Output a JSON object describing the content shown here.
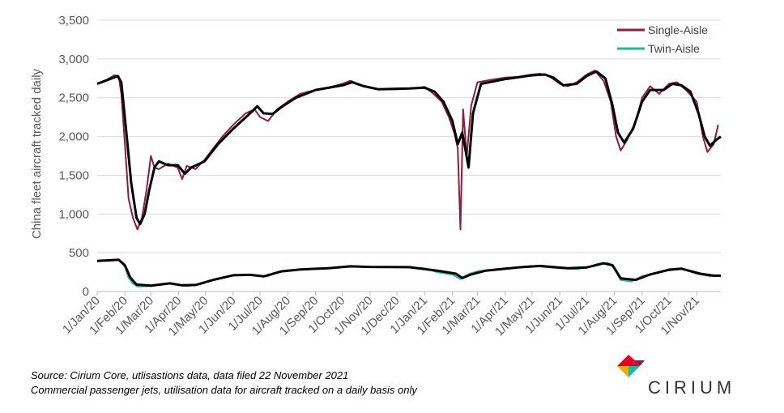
{
  "chart_data": {
    "type": "line",
    "title": "",
    "xlabel": "",
    "ylabel": "China fleet aircraft tracked daily",
    "ylim": [
      0,
      3500
    ],
    "yticks": [
      0,
      500,
      1000,
      1500,
      2000,
      2500,
      3000,
      3500
    ],
    "ytick_labels": [
      "0",
      "500",
      "1,000",
      "1,500",
      "2,000",
      "2,500",
      "3,000",
      "3,500"
    ],
    "xlim": [
      "2020-01-01",
      "2021-11-28"
    ],
    "xtick_dates": [
      "2020-01-01",
      "2020-02-01",
      "2020-03-01",
      "2020-04-01",
      "2020-05-01",
      "2020-06-01",
      "2020-07-01",
      "2020-08-01",
      "2020-09-01",
      "2020-10-01",
      "2020-11-01",
      "2020-12-01",
      "2021-01-01",
      "2021-02-01",
      "2021-03-01",
      "2021-04-01",
      "2021-05-01",
      "2021-06-01",
      "2021-07-01",
      "2021-08-01",
      "2021-09-01",
      "2021-10-01",
      "2021-11-01"
    ],
    "xtick_labels": [
      "1/Jan/20",
      "1/Feb/20",
      "1/Mar/20",
      "1/Apr/20",
      "1/May/20",
      "1/Jun/20",
      "1/Jul/20",
      "1/Aug/20",
      "1/Sep/20",
      "1/Oct/20",
      "1/Nov/20",
      "1/Dec/20",
      "1/Jan/21",
      "1/Feb/21",
      "1/Mar/21",
      "1/Apr/21",
      "1/May/21",
      "1/Jun/21",
      "1/Jul/21",
      "1/Aug/21",
      "1/Sep/21",
      "1/Oct/21",
      "1/Nov/21"
    ],
    "grid": "horizontal",
    "legend_position": "top-right",
    "series": [
      {
        "name": "Single-Aisle",
        "color": "#8b1e3f",
        "values": [
          [
            "2020-01-01",
            2680
          ],
          [
            "2020-01-10",
            2720
          ],
          [
            "2020-01-20",
            2790
          ],
          [
            "2020-01-25",
            2780
          ],
          [
            "2020-01-28",
            2550
          ],
          [
            "2020-02-01",
            1900
          ],
          [
            "2020-02-05",
            1200
          ],
          [
            "2020-02-10",
            950
          ],
          [
            "2020-02-15",
            800
          ],
          [
            "2020-02-20",
            950
          ],
          [
            "2020-02-25",
            1300
          ],
          [
            "2020-03-01",
            1750
          ],
          [
            "2020-03-05",
            1600
          ],
          [
            "2020-03-10",
            1580
          ],
          [
            "2020-03-20",
            1650
          ],
          [
            "2020-03-31",
            1600
          ],
          [
            "2020-04-05",
            1450
          ],
          [
            "2020-04-10",
            1620
          ],
          [
            "2020-04-20",
            1580
          ],
          [
            "2020-04-30",
            1700
          ],
          [
            "2020-05-10",
            1850
          ],
          [
            "2020-05-20",
            2000
          ],
          [
            "2020-06-01",
            2150
          ],
          [
            "2020-06-15",
            2300
          ],
          [
            "2020-06-25",
            2350
          ],
          [
            "2020-07-01",
            2250
          ],
          [
            "2020-07-10",
            2200
          ],
          [
            "2020-07-20",
            2350
          ],
          [
            "2020-08-01",
            2450
          ],
          [
            "2020-08-15",
            2550
          ],
          [
            "2020-09-01",
            2600
          ],
          [
            "2020-09-15",
            2630
          ],
          [
            "2020-10-01",
            2680
          ],
          [
            "2020-10-10",
            2720
          ],
          [
            "2020-10-25",
            2650
          ],
          [
            "2020-11-10",
            2610
          ],
          [
            "2020-12-01",
            2610
          ],
          [
            "2020-12-20",
            2620
          ],
          [
            "2021-01-01",
            2640
          ],
          [
            "2021-01-10",
            2560
          ],
          [
            "2021-01-20",
            2450
          ],
          [
            "2021-01-28",
            2250
          ],
          [
            "2021-02-03",
            2050
          ],
          [
            "2021-02-07",
            1850
          ],
          [
            "2021-02-10",
            800
          ],
          [
            "2021-02-13",
            2350
          ],
          [
            "2021-02-17",
            1750
          ],
          [
            "2021-02-22",
            2400
          ],
          [
            "2021-03-01",
            2700
          ],
          [
            "2021-03-15",
            2730
          ],
          [
            "2021-04-01",
            2760
          ],
          [
            "2021-04-15",
            2770
          ],
          [
            "2021-05-01",
            2800
          ],
          [
            "2021-05-10",
            2810
          ],
          [
            "2021-05-20",
            2780
          ],
          [
            "2021-06-01",
            2680
          ],
          [
            "2021-06-10",
            2650
          ],
          [
            "2021-06-20",
            2700
          ],
          [
            "2021-07-01",
            2800
          ],
          [
            "2021-07-10",
            2850
          ],
          [
            "2021-07-20",
            2720
          ],
          [
            "2021-07-28",
            2450
          ],
          [
            "2021-08-03",
            2000
          ],
          [
            "2021-08-08",
            1820
          ],
          [
            "2021-08-15",
            1950
          ],
          [
            "2021-08-25",
            2200
          ],
          [
            "2021-09-01",
            2500
          ],
          [
            "2021-09-10",
            2650
          ],
          [
            "2021-09-20",
            2550
          ],
          [
            "2021-10-01",
            2680
          ],
          [
            "2021-10-10",
            2700
          ],
          [
            "2021-10-20",
            2600
          ],
          [
            "2021-11-01",
            2450
          ],
          [
            "2021-11-08",
            2000
          ],
          [
            "2021-11-13",
            1800
          ],
          [
            "2021-11-20",
            1900
          ],
          [
            "2021-11-25",
            2150
          ]
        ]
      },
      {
        "name": "Twin-Aisle",
        "color": "#1fb89a",
        "values": [
          [
            "2020-01-01",
            390
          ],
          [
            "2020-01-15",
            405
          ],
          [
            "2020-01-25",
            410
          ],
          [
            "2020-02-01",
            320
          ],
          [
            "2020-02-05",
            180
          ],
          [
            "2020-02-10",
            100
          ],
          [
            "2020-02-15",
            65
          ],
          [
            "2020-03-01",
            70
          ],
          [
            "2020-03-15",
            90
          ],
          [
            "2020-03-22",
            110
          ],
          [
            "2020-04-01",
            80
          ],
          [
            "2020-04-10",
            70
          ],
          [
            "2020-04-20",
            80
          ],
          [
            "2020-05-01",
            120
          ],
          [
            "2020-05-15",
            170
          ],
          [
            "2020-06-01",
            210
          ],
          [
            "2020-06-15",
            220
          ],
          [
            "2020-07-01",
            195
          ],
          [
            "2020-07-10",
            200
          ],
          [
            "2020-07-20",
            250
          ],
          [
            "2020-08-01",
            275
          ],
          [
            "2020-09-01",
            295
          ],
          [
            "2020-10-01",
            315
          ],
          [
            "2020-10-10",
            330
          ],
          [
            "2020-11-01",
            315
          ],
          [
            "2020-12-01",
            315
          ],
          [
            "2021-01-01",
            300
          ],
          [
            "2021-01-15",
            250
          ],
          [
            "2021-02-01",
            220
          ],
          [
            "2021-02-10",
            160
          ],
          [
            "2021-02-20",
            230
          ],
          [
            "2021-03-01",
            260
          ],
          [
            "2021-04-01",
            300
          ],
          [
            "2021-05-01",
            330
          ],
          [
            "2021-06-01",
            300
          ],
          [
            "2021-06-20",
            290
          ],
          [
            "2021-07-01",
            310
          ],
          [
            "2021-07-15",
            360
          ],
          [
            "2021-07-25",
            370
          ],
          [
            "2021-08-01",
            300
          ],
          [
            "2021-08-08",
            150
          ],
          [
            "2021-08-20",
            130
          ],
          [
            "2021-09-01",
            200
          ],
          [
            "2021-09-15",
            230
          ],
          [
            "2021-10-01",
            290
          ],
          [
            "2021-10-15",
            300
          ],
          [
            "2021-11-01",
            230
          ],
          [
            "2021-11-15",
            200
          ],
          [
            "2021-11-25",
            200
          ]
        ]
      },
      {
        "name": "",
        "color": "#000000",
        "values": [
          [
            "2020-01-01",
            2680
          ],
          [
            "2020-01-15",
            2740
          ],
          [
            "2020-01-24",
            2780
          ],
          [
            "2020-01-28",
            2700
          ],
          [
            "2020-02-03",
            2000
          ],
          [
            "2020-02-08",
            1400
          ],
          [
            "2020-02-14",
            950
          ],
          [
            "2020-02-18",
            870
          ],
          [
            "2020-02-23",
            1000
          ],
          [
            "2020-02-28",
            1300
          ],
          [
            "2020-03-05",
            1600
          ],
          [
            "2020-03-10",
            1680
          ],
          [
            "2020-03-20",
            1630
          ],
          [
            "2020-03-31",
            1630
          ],
          [
            "2020-04-08",
            1520
          ],
          [
            "2020-04-15",
            1600
          ],
          [
            "2020-04-30",
            1680
          ],
          [
            "2020-05-15",
            1900
          ],
          [
            "2020-06-01",
            2100
          ],
          [
            "2020-06-20",
            2300
          ],
          [
            "2020-06-28",
            2390
          ],
          [
            "2020-07-05",
            2300
          ],
          [
            "2020-07-15",
            2290
          ],
          [
            "2020-07-25",
            2380
          ],
          [
            "2020-08-10",
            2500
          ],
          [
            "2020-09-01",
            2600
          ],
          [
            "2020-10-01",
            2660
          ],
          [
            "2020-10-12",
            2700
          ],
          [
            "2020-10-25",
            2650
          ],
          [
            "2020-11-10",
            2610
          ],
          [
            "2020-12-15",
            2620
          ],
          [
            "2021-01-01",
            2630
          ],
          [
            "2021-01-12",
            2580
          ],
          [
            "2021-01-22",
            2450
          ],
          [
            "2021-02-01",
            2200
          ],
          [
            "2021-02-07",
            1900
          ],
          [
            "2021-02-12",
            2050
          ],
          [
            "2021-02-16",
            1800
          ],
          [
            "2021-02-19",
            1600
          ],
          [
            "2021-02-24",
            2300
          ],
          [
            "2021-03-05",
            2680
          ],
          [
            "2021-04-01",
            2740
          ],
          [
            "2021-05-01",
            2790
          ],
          [
            "2021-05-15",
            2800
          ],
          [
            "2021-05-25",
            2760
          ],
          [
            "2021-06-05",
            2660
          ],
          [
            "2021-06-20",
            2680
          ],
          [
            "2021-07-01",
            2780
          ],
          [
            "2021-07-12",
            2840
          ],
          [
            "2021-07-22",
            2750
          ],
          [
            "2021-07-30",
            2400
          ],
          [
            "2021-08-05",
            2050
          ],
          [
            "2021-08-12",
            1920
          ],
          [
            "2021-08-22",
            2100
          ],
          [
            "2021-09-01",
            2450
          ],
          [
            "2021-09-10",
            2600
          ],
          [
            "2021-09-25",
            2600
          ],
          [
            "2021-10-05",
            2680
          ],
          [
            "2021-10-15",
            2660
          ],
          [
            "2021-10-25",
            2580
          ],
          [
            "2021-11-03",
            2300
          ],
          [
            "2021-11-10",
            2000
          ],
          [
            "2021-11-16",
            1880
          ],
          [
            "2021-11-22",
            1950
          ],
          [
            "2021-11-28",
            2000
          ]
        ]
      },
      {
        "name": "",
        "color": "#000000",
        "values": [
          [
            "2020-01-01",
            395
          ],
          [
            "2020-01-25",
            410
          ],
          [
            "2020-02-01",
            340
          ],
          [
            "2020-02-07",
            180
          ],
          [
            "2020-02-14",
            90
          ],
          [
            "2020-03-01",
            75
          ],
          [
            "2020-03-22",
            105
          ],
          [
            "2020-04-05",
            80
          ],
          [
            "2020-04-20",
            85
          ],
          [
            "2020-05-10",
            150
          ],
          [
            "2020-06-01",
            210
          ],
          [
            "2020-06-20",
            215
          ],
          [
            "2020-07-05",
            195
          ],
          [
            "2020-07-25",
            260
          ],
          [
            "2020-08-15",
            285
          ],
          [
            "2020-09-15",
            300
          ],
          [
            "2020-10-10",
            325
          ],
          [
            "2020-11-01",
            318
          ],
          [
            "2020-12-15",
            315
          ],
          [
            "2021-01-15",
            270
          ],
          [
            "2021-02-05",
            230
          ],
          [
            "2021-02-12",
            175
          ],
          [
            "2021-02-22",
            220
          ],
          [
            "2021-03-10",
            270
          ],
          [
            "2021-04-15",
            310
          ],
          [
            "2021-05-10",
            330
          ],
          [
            "2021-06-10",
            300
          ],
          [
            "2021-07-01",
            310
          ],
          [
            "2021-07-20",
            365
          ],
          [
            "2021-07-30",
            340
          ],
          [
            "2021-08-08",
            170
          ],
          [
            "2021-08-25",
            150
          ],
          [
            "2021-09-10",
            220
          ],
          [
            "2021-10-01",
            280
          ],
          [
            "2021-10-15",
            295
          ],
          [
            "2021-11-05",
            230
          ],
          [
            "2021-11-20",
            205
          ],
          [
            "2021-11-28",
            205
          ]
        ]
      }
    ]
  },
  "source_line_1": "Source: Cirium Core, utlisastions data, data filed 22 November 2021",
  "source_line_2": "Commercial passenger jets, utilisation data for aircraft tracked on a daily basis only",
  "logo": {
    "text": "CIRIUM"
  }
}
